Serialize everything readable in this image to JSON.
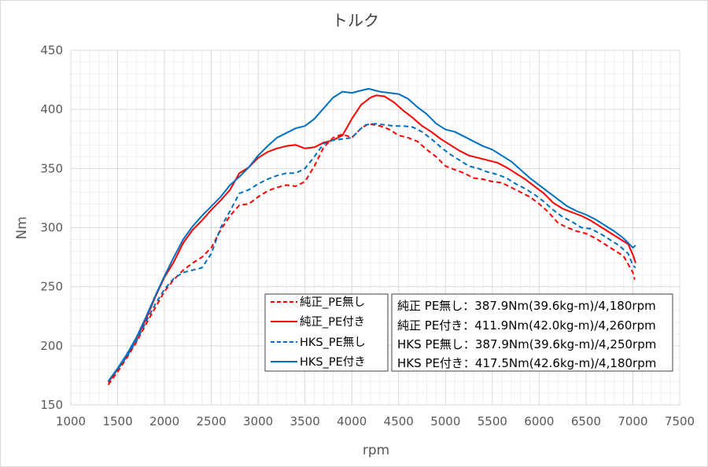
{
  "chart_data": {
    "type": "line",
    "title": "トルク",
    "xlabel": "rpm",
    "ylabel": "Nm",
    "xlim": [
      1000,
      7500
    ],
    "ylim": [
      150,
      450
    ],
    "xticks": [
      "1000",
      "1500",
      "2000",
      "2500",
      "3000",
      "3500",
      "4000",
      "4500",
      "5000",
      "5500",
      "6000",
      "6500",
      "7000",
      "7500"
    ],
    "yticks": [
      "150",
      "200",
      "250",
      "300",
      "350",
      "400",
      "450"
    ],
    "grid": true,
    "legend_position": "bottom-center",
    "series": [
      {
        "name": "純正_PE無し",
        "color": "#ff0000",
        "dash": "dashed",
        "points": [
          [
            1400,
            167
          ],
          [
            1500,
            178
          ],
          [
            1600,
            190
          ],
          [
            1700,
            203
          ],
          [
            1800,
            218
          ],
          [
            1900,
            232
          ],
          [
            2000,
            246
          ],
          [
            2100,
            256
          ],
          [
            2200,
            264
          ],
          [
            2300,
            270
          ],
          [
            2400,
            275
          ],
          [
            2500,
            283
          ],
          [
            2600,
            298
          ],
          [
            2700,
            310
          ],
          [
            2800,
            319
          ],
          [
            2900,
            320
          ],
          [
            3000,
            326
          ],
          [
            3100,
            331
          ],
          [
            3200,
            334
          ],
          [
            3300,
            336
          ],
          [
            3400,
            335
          ],
          [
            3500,
            339
          ],
          [
            3600,
            352
          ],
          [
            3700,
            368
          ],
          [
            3800,
            376
          ],
          [
            3900,
            379
          ],
          [
            4000,
            376
          ],
          [
            4100,
            384
          ],
          [
            4180,
            387.9
          ],
          [
            4300,
            386
          ],
          [
            4400,
            383
          ],
          [
            4500,
            378
          ],
          [
            4600,
            376
          ],
          [
            4700,
            373
          ],
          [
            4800,
            366
          ],
          [
            4900,
            360
          ],
          [
            5000,
            352
          ],
          [
            5100,
            349
          ],
          [
            5200,
            346
          ],
          [
            5300,
            342
          ],
          [
            5400,
            341
          ],
          [
            5500,
            339
          ],
          [
            5600,
            338
          ],
          [
            5700,
            334
          ],
          [
            5800,
            330
          ],
          [
            5900,
            326
          ],
          [
            6000,
            320
          ],
          [
            6100,
            313
          ],
          [
            6200,
            304
          ],
          [
            6300,
            300
          ],
          [
            6400,
            297
          ],
          [
            6500,
            295
          ],
          [
            6600,
            291
          ],
          [
            6700,
            286
          ],
          [
            6800,
            281
          ],
          [
            6900,
            276
          ],
          [
            7000,
            262
          ],
          [
            7020,
            256
          ]
        ]
      },
      {
        "name": "純正_PE付き",
        "color": "#ff0000",
        "dash": "solid",
        "points": [
          [
            1400,
            169
          ],
          [
            1500,
            180
          ],
          [
            1600,
            192
          ],
          [
            1700,
            206
          ],
          [
            1800,
            222
          ],
          [
            1900,
            241
          ],
          [
            2000,
            258
          ],
          [
            2100,
            271
          ],
          [
            2200,
            287
          ],
          [
            2300,
            298
          ],
          [
            2400,
            306
          ],
          [
            2500,
            315
          ],
          [
            2600,
            323
          ],
          [
            2700,
            332
          ],
          [
            2800,
            346
          ],
          [
            2900,
            351
          ],
          [
            3000,
            359
          ],
          [
            3100,
            364
          ],
          [
            3200,
            367
          ],
          [
            3300,
            369
          ],
          [
            3400,
            370
          ],
          [
            3500,
            367
          ],
          [
            3600,
            368
          ],
          [
            3700,
            372
          ],
          [
            3800,
            374
          ],
          [
            3900,
            378
          ],
          [
            4000,
            392
          ],
          [
            4100,
            404
          ],
          [
            4200,
            410
          ],
          [
            4260,
            411.9
          ],
          [
            4350,
            411
          ],
          [
            4450,
            406
          ],
          [
            4550,
            399
          ],
          [
            4650,
            393
          ],
          [
            4750,
            386
          ],
          [
            4850,
            381
          ],
          [
            4950,
            375
          ],
          [
            5050,
            370
          ],
          [
            5150,
            365
          ],
          [
            5250,
            361
          ],
          [
            5350,
            359
          ],
          [
            5450,
            357
          ],
          [
            5550,
            355
          ],
          [
            5650,
            351
          ],
          [
            5750,
            346
          ],
          [
            5850,
            341
          ],
          [
            5950,
            335
          ],
          [
            6050,
            329
          ],
          [
            6150,
            321
          ],
          [
            6250,
            316
          ],
          [
            6350,
            313
          ],
          [
            6450,
            310
          ],
          [
            6550,
            306
          ],
          [
            6650,
            301
          ],
          [
            6750,
            296
          ],
          [
            6850,
            291
          ],
          [
            6950,
            286
          ],
          [
            7000,
            277
          ],
          [
            7030,
            270
          ]
        ]
      },
      {
        "name": "HKS_PE無し",
        "color": "#0070c0",
        "dash": "dashed",
        "points": [
          [
            1400,
            170
          ],
          [
            1500,
            180
          ],
          [
            1600,
            191
          ],
          [
            1700,
            204
          ],
          [
            1800,
            220
          ],
          [
            1900,
            235
          ],
          [
            2000,
            248
          ],
          [
            2100,
            257
          ],
          [
            2200,
            262
          ],
          [
            2300,
            264
          ],
          [
            2400,
            266
          ],
          [
            2500,
            278
          ],
          [
            2600,
            300
          ],
          [
            2700,
            314
          ],
          [
            2800,
            329
          ],
          [
            2900,
            332
          ],
          [
            3000,
            337
          ],
          [
            3100,
            341
          ],
          [
            3200,
            344
          ],
          [
            3300,
            346
          ],
          [
            3400,
            346
          ],
          [
            3500,
            350
          ],
          [
            3600,
            360
          ],
          [
            3700,
            371
          ],
          [
            3800,
            374
          ],
          [
            3900,
            375
          ],
          [
            4000,
            376
          ],
          [
            4100,
            384
          ],
          [
            4150,
            387
          ],
          [
            4250,
            387.9
          ],
          [
            4350,
            387
          ],
          [
            4450,
            386
          ],
          [
            4550,
            386
          ],
          [
            4650,
            385
          ],
          [
            4750,
            381
          ],
          [
            4850,
            375
          ],
          [
            4950,
            368
          ],
          [
            5050,
            362
          ],
          [
            5150,
            357
          ],
          [
            5250,
            352
          ],
          [
            5350,
            350
          ],
          [
            5450,
            347
          ],
          [
            5550,
            345
          ],
          [
            5650,
            342
          ],
          [
            5750,
            337
          ],
          [
            5850,
            333
          ],
          [
            5950,
            328
          ],
          [
            6050,
            322
          ],
          [
            6150,
            315
          ],
          [
            6250,
            309
          ],
          [
            6350,
            305
          ],
          [
            6450,
            300
          ],
          [
            6550,
            299
          ],
          [
            6650,
            295
          ],
          [
            6750,
            290
          ],
          [
            6850,
            285
          ],
          [
            6950,
            278
          ],
          [
            7000,
            268
          ],
          [
            7030,
            266
          ]
        ]
      },
      {
        "name": "HKS_PE付き",
        "color": "#0070c0",
        "dash": "solid",
        "points": [
          [
            1400,
            170
          ],
          [
            1500,
            181
          ],
          [
            1600,
            193
          ],
          [
            1700,
            207
          ],
          [
            1800,
            224
          ],
          [
            1900,
            242
          ],
          [
            2000,
            259
          ],
          [
            2100,
            275
          ],
          [
            2200,
            290
          ],
          [
            2300,
            301
          ],
          [
            2400,
            310
          ],
          [
            2500,
            318
          ],
          [
            2600,
            326
          ],
          [
            2700,
            336
          ],
          [
            2800,
            343
          ],
          [
            2900,
            351
          ],
          [
            3000,
            361
          ],
          [
            3100,
            369
          ],
          [
            3200,
            376
          ],
          [
            3300,
            380
          ],
          [
            3400,
            384
          ],
          [
            3500,
            386
          ],
          [
            3600,
            392
          ],
          [
            3700,
            401
          ],
          [
            3800,
            410
          ],
          [
            3900,
            415
          ],
          [
            4000,
            414
          ],
          [
            4100,
            416
          ],
          [
            4180,
            417.5
          ],
          [
            4300,
            415
          ],
          [
            4400,
            414
          ],
          [
            4500,
            413
          ],
          [
            4600,
            409
          ],
          [
            4700,
            402
          ],
          [
            4800,
            396
          ],
          [
            4900,
            388
          ],
          [
            5000,
            383
          ],
          [
            5100,
            381
          ],
          [
            5200,
            377
          ],
          [
            5300,
            373
          ],
          [
            5400,
            369
          ],
          [
            5500,
            366
          ],
          [
            5600,
            361
          ],
          [
            5700,
            356
          ],
          [
            5800,
            349
          ],
          [
            5900,
            342
          ],
          [
            6000,
            336
          ],
          [
            6100,
            330
          ],
          [
            6200,
            324
          ],
          [
            6300,
            318
          ],
          [
            6400,
            314
          ],
          [
            6500,
            311
          ],
          [
            6600,
            307
          ],
          [
            6700,
            302
          ],
          [
            6800,
            297
          ],
          [
            6900,
            291
          ],
          [
            7000,
            283
          ],
          [
            7030,
            285
          ]
        ]
      }
    ],
    "annotations": [
      "純正 PE無し：387.9Nm(39.6kg-m)/4,180rpm",
      "純正 PE付き：411.9Nm(42.0kg-m)/4,260rpm",
      "HKS PE無し：387.9Nm(39.6kg-m)/4,250rpm",
      "HKS PE付き：417.5Nm(42.6kg-m)/4,180rpm"
    ]
  }
}
